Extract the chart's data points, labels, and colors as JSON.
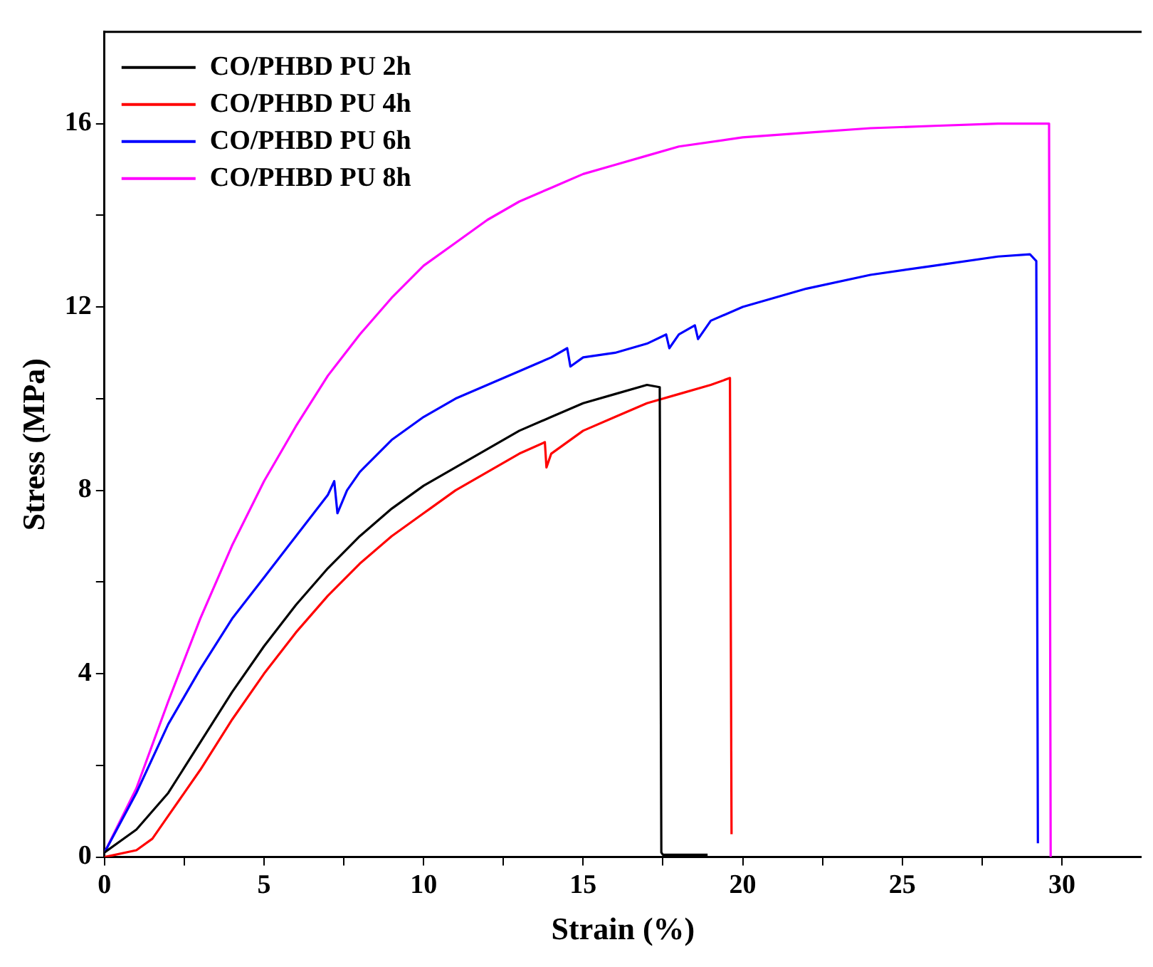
{
  "chart_data": {
    "type": "line",
    "xlabel": "Strain (%)",
    "ylabel": "Stress (MPa)",
    "xlim": [
      0,
      32.5
    ],
    "ylim": [
      0,
      18
    ],
    "xticks": [
      0,
      {
        "value": 2.5,
        "label": null
      },
      5,
      {
        "value": 7.5,
        "label": null
      },
      10,
      {
        "value": 12.5,
        "label": null
      },
      15,
      {
        "value": 17.5,
        "label": null
      },
      20,
      {
        "value": 22.5,
        "label": null
      },
      25,
      {
        "value": 27.5,
        "label": null
      },
      30
    ],
    "yticks": [
      0,
      {
        "value": 2,
        "label": null
      },
      4,
      {
        "value": 6,
        "label": null
      },
      8,
      {
        "value": 10,
        "label": null
      },
      12,
      {
        "value": 14,
        "label": null
      },
      16
    ],
    "grid": false,
    "legend": "top left",
    "marker": "none",
    "line_style": "solid",
    "series": [
      {
        "name": "CO/PHBD PU 2h",
        "color": "#000000",
        "x": [
          0,
          1,
          2,
          3,
          4,
          5,
          6,
          7,
          8,
          9,
          10,
          11,
          12,
          13,
          14,
          15,
          16,
          17,
          17.4,
          17.45,
          17.5,
          18.9
        ],
        "values": [
          0.1,
          0.6,
          1.4,
          2.5,
          3.6,
          4.6,
          5.5,
          6.3,
          7.0,
          7.6,
          8.1,
          8.5,
          8.9,
          9.3,
          9.6,
          9.9,
          10.1,
          10.3,
          10.25,
          0.1,
          0.05,
          0.05
        ]
      },
      {
        "name": "CO/PHBD PU 4h",
        "color": "#ff0000",
        "x": [
          0,
          1,
          1.5,
          2,
          3,
          4,
          5,
          6,
          7,
          8,
          9,
          10,
          10.2,
          11,
          12,
          13,
          13.8,
          13.85,
          14,
          15,
          16,
          17,
          18,
          19,
          19.6,
          19.65
        ],
        "values": [
          0,
          0.15,
          0.4,
          0.9,
          1.9,
          3.0,
          4.0,
          4.9,
          5.7,
          6.4,
          7.0,
          7.5,
          7.6,
          8.0,
          8.4,
          8.8,
          9.05,
          8.5,
          8.8,
          9.3,
          9.6,
          9.9,
          10.1,
          10.3,
          10.45,
          0.5
        ]
      },
      {
        "name": "CO/PHBD PU 6h",
        "color": "#0000ff",
        "x": [
          0,
          1,
          2,
          3,
          4,
          5,
          6,
          7,
          7.2,
          7.3,
          7.6,
          8,
          9,
          10,
          11,
          12,
          13,
          14,
          14.5,
          14.6,
          15,
          16,
          17,
          17.6,
          17.7,
          18,
          18.5,
          18.6,
          19,
          20,
          22,
          24,
          26,
          28,
          29,
          29.2,
          29.25
        ],
        "values": [
          0.1,
          1.4,
          2.9,
          4.1,
          5.2,
          6.1,
          7.0,
          7.9,
          8.2,
          7.5,
          8.0,
          8.4,
          9.1,
          9.6,
          10.0,
          10.3,
          10.6,
          10.9,
          11.1,
          10.7,
          10.9,
          11.0,
          11.2,
          11.4,
          11.1,
          11.4,
          11.6,
          11.3,
          11.7,
          12.0,
          12.4,
          12.7,
          12.9,
          13.1,
          13.15,
          13.0,
          0.3
        ]
      },
      {
        "name": "CO/PHBD PU 8h",
        "color": "#ff00ff",
        "x": [
          0,
          1,
          2,
          3,
          4,
          5,
          6,
          7,
          8,
          9,
          10,
          11,
          12,
          13,
          14,
          15,
          16,
          17,
          18,
          20,
          22,
          24,
          26,
          28,
          29.6,
          29.65
        ],
        "values": [
          0.1,
          1.5,
          3.4,
          5.2,
          6.8,
          8.2,
          9.4,
          10.5,
          11.4,
          12.2,
          12.9,
          13.4,
          13.9,
          14.3,
          14.6,
          14.9,
          15.1,
          15.3,
          15.5,
          15.7,
          15.8,
          15.9,
          15.95,
          16.0,
          16.0,
          0
        ]
      }
    ]
  }
}
